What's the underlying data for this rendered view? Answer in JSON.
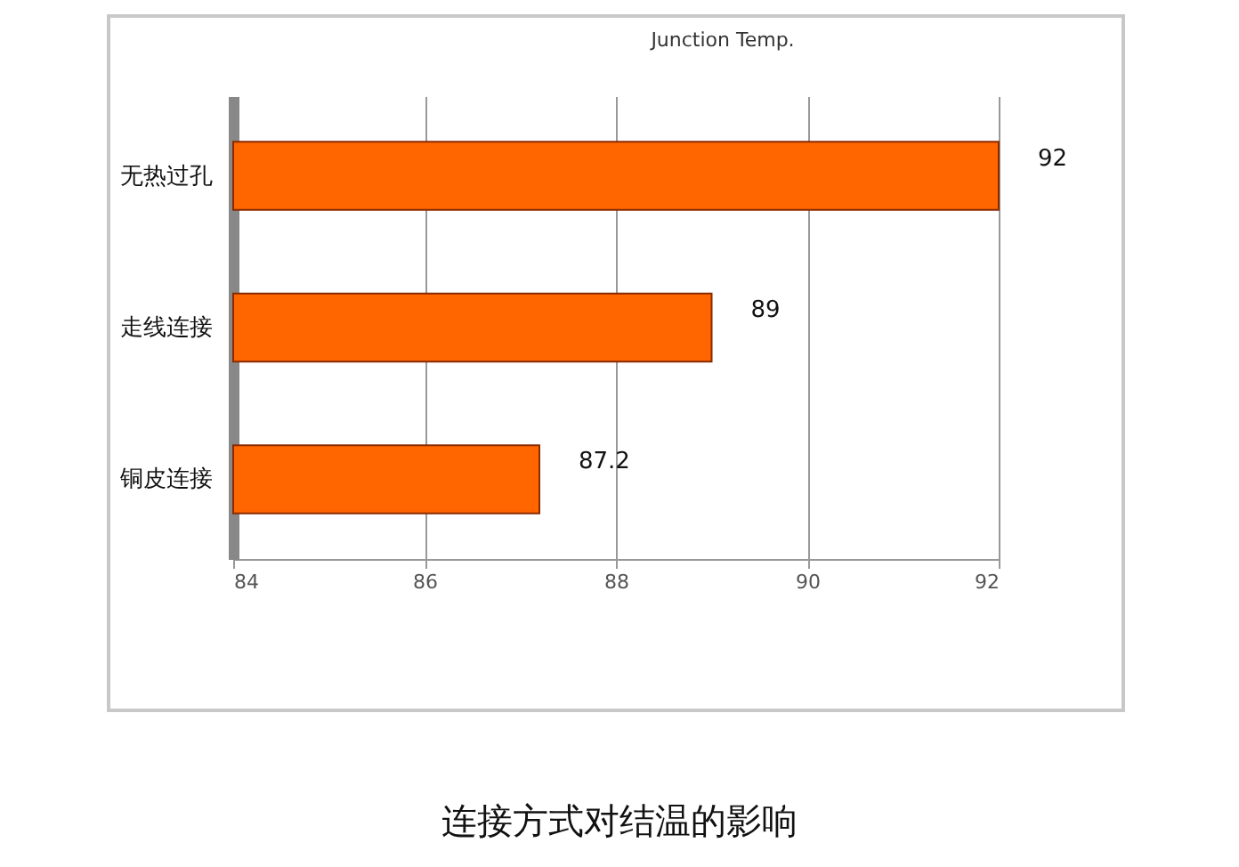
{
  "chart_data": {
    "type": "bar",
    "orientation": "horizontal",
    "title": "Junction Temp.",
    "categories": [
      "无热过孔",
      "走线连接",
      "铜皮连接"
    ],
    "values": [
      92,
      89,
      87.2
    ],
    "color": "#ff6600",
    "xlim": [
      84,
      92
    ],
    "xticks": [
      84,
      86,
      88,
      90,
      92
    ],
    "grid": "x",
    "data_labels": true,
    "annotations": [
      "连接方式对结温的影响"
    ]
  }
}
